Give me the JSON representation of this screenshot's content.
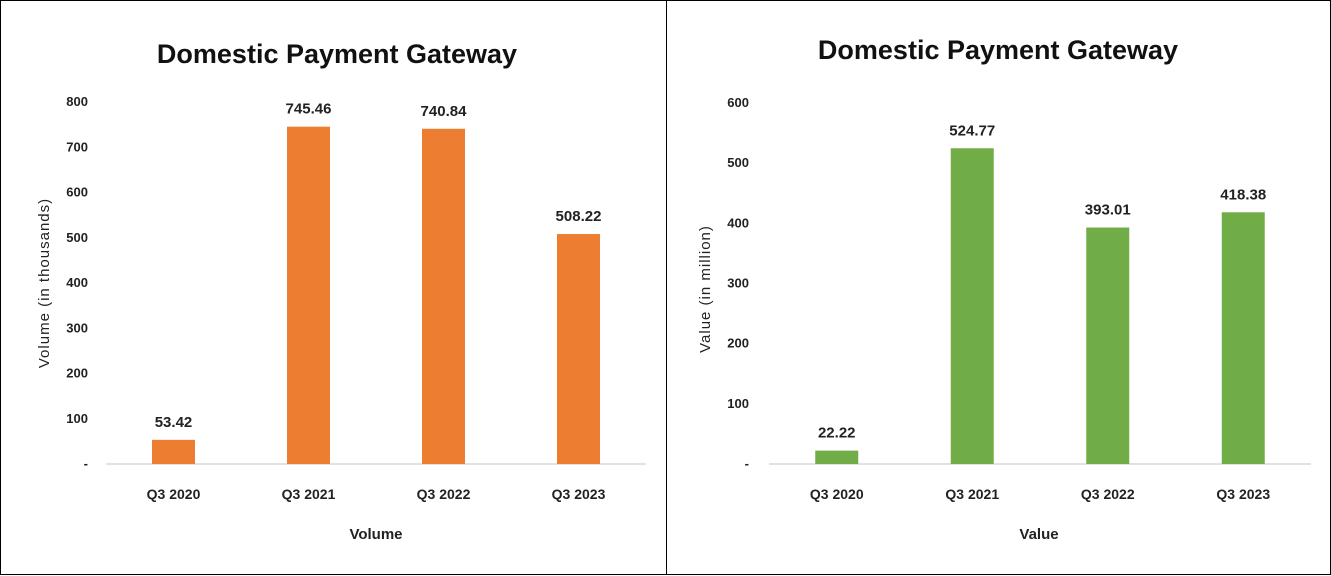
{
  "chart_data": [
    {
      "type": "bar",
      "title": "Domestic Payment Gateway",
      "xlabel": "Volume",
      "ylabel": "Volume (in thousands)",
      "categories": [
        "Q3 2020",
        "Q3 2021",
        "Q3 2022",
        "Q3 2023"
      ],
      "values": [
        53.42,
        745.46,
        740.84,
        508.22
      ],
      "data_labels": [
        "53.42",
        "745.46",
        "740.84",
        "508.22"
      ],
      "ylim": [
        0,
        800
      ],
      "yticks": [
        "-",
        "100",
        "200",
        "300",
        "400",
        "500",
        "600",
        "700",
        "800"
      ],
      "color": "#ed7d31",
      "grid": false
    },
    {
      "type": "bar",
      "title": "Domestic Payment Gateway",
      "xlabel": "Value",
      "ylabel": "Value (in million)",
      "categories": [
        "Q3 2020",
        "Q3 2021",
        "Q3 2022",
        "Q3 2023"
      ],
      "values": [
        22.22,
        524.77,
        393.01,
        418.38
      ],
      "data_labels": [
        "22.22",
        "524.77",
        "393.01",
        "418.38"
      ],
      "ylim": [
        0,
        600
      ],
      "yticks": [
        "-",
        "100",
        "200",
        "300",
        "400",
        "500",
        "600"
      ],
      "color": "#70ad47",
      "grid": false
    }
  ]
}
